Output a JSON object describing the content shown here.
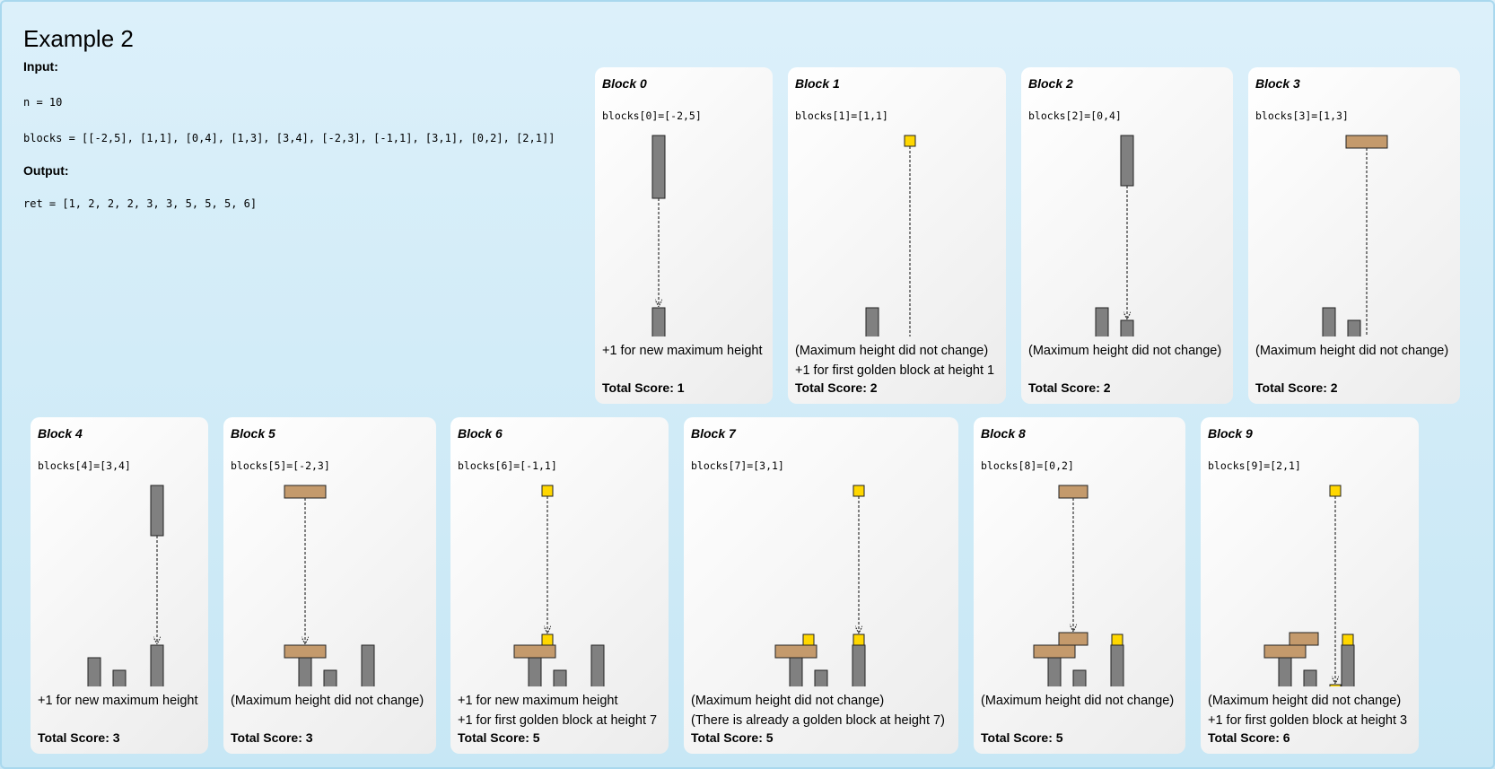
{
  "title": "Example 2",
  "input_label": "Input:",
  "n_line": "n = 10",
  "blocks_line": "blocks = [[-2,5], [1,1], [0,4], [1,3], [3,4], [-2,3], [-1,1], [3,1], [0,2], [2,1]]",
  "output_label": "Output:",
  "ret_line": "ret = [1, 2, 2, 2, 3, 3, 5, 5, 5, 6]",
  "axis_zero": "0",
  "colors": {
    "grey": "#808080",
    "tan": "#c49a6c",
    "gold": "#ffd700",
    "axis": "#333333"
  },
  "cards": [
    {
      "title": "Block 0",
      "expr": "blocks[0]=[-2,5]",
      "lines": [
        "+1 for new maximum height"
      ],
      "score": "Total Score: 1",
      "placed": [],
      "falling": [
        -2,
        5
      ],
      "dropTo": 0
    },
    {
      "title": "Block 1",
      "expr": "blocks[1]=[1,1]",
      "lines": [
        "(Maximum height did not change)",
        "+1 for first golden block at height 1"
      ],
      "score": "Total Score: 2",
      "placed": [
        [
          -2,
          5,
          0
        ]
      ],
      "falling": [
        1,
        1
      ],
      "dropTo": 0
    },
    {
      "title": "Block 2",
      "expr": "blocks[2]=[0,4]",
      "lines": [
        "(Maximum height did not change)"
      ],
      "score": "Total Score: 2",
      "placed": [
        [
          -2,
          5,
          0
        ],
        [
          1,
          1,
          0
        ]
      ],
      "falling": [
        0,
        4
      ],
      "dropTo": 0
    },
    {
      "title": "Block 3",
      "expr": "blocks[3]=[1,3]",
      "lines": [
        "(Maximum height did not change)"
      ],
      "score": "Total Score: 2",
      "placed": [
        [
          -2,
          5,
          0
        ],
        [
          1,
          1,
          0
        ],
        [
          0,
          4,
          0
        ]
      ],
      "falling": [
        1,
        3
      ],
      "dropTo": 1
    },
    {
      "title": "Block 4",
      "expr": "blocks[4]=[3,4]",
      "lines": [
        "+1 for new maximum height"
      ],
      "score": "Total Score: 3",
      "placed": [
        [
          -2,
          5,
          0
        ],
        [
          1,
          1,
          0
        ],
        [
          0,
          4,
          0
        ],
        [
          1,
          3,
          1
        ]
      ],
      "falling": [
        3,
        4
      ],
      "dropTo": 2
    },
    {
      "title": "Block 5",
      "expr": "blocks[5]=[-2,3]",
      "lines": [
        "(Maximum height did not change)"
      ],
      "score": "Total Score: 3",
      "placed": [
        [
          -2,
          5,
          0
        ],
        [
          1,
          1,
          0
        ],
        [
          0,
          4,
          0
        ],
        [
          1,
          3,
          1
        ],
        [
          3,
          4,
          2
        ]
      ],
      "falling": [
        -2,
        3
      ],
      "dropTo": 5
    },
    {
      "title": "Block 6",
      "expr": "blocks[6]=[-1,1]",
      "lines": [
        "+1 for new maximum height",
        "+1 for first golden block at height 7"
      ],
      "score": "Total Score: 5",
      "placed": [
        [
          -2,
          5,
          0
        ],
        [
          1,
          1,
          0
        ],
        [
          0,
          4,
          0
        ],
        [
          1,
          3,
          1
        ],
        [
          3,
          4,
          2
        ],
        [
          -2,
          3,
          5
        ]
      ],
      "falling": [
        -1,
        1
      ],
      "dropTo": 6
    },
    {
      "title": "Block 7",
      "expr": "blocks[7]=[3,1]",
      "lines": [
        "(Maximum height did not change)",
        "(There is already a golden block at height 7)"
      ],
      "score": "Total Score: 5",
      "placed": [
        [
          -2,
          5,
          0
        ],
        [
          1,
          1,
          0
        ],
        [
          0,
          4,
          0
        ],
        [
          1,
          3,
          1
        ],
        [
          3,
          4,
          2
        ],
        [
          -2,
          3,
          5
        ],
        [
          -1,
          1,
          6
        ]
      ],
      "falling": [
        3,
        1
      ],
      "dropTo": 6
    },
    {
      "title": "Block 8",
      "expr": "blocks[8]=[0,2]",
      "lines": [
        "(Maximum height did not change)"
      ],
      "score": "Total Score: 5",
      "placed": [
        [
          -2,
          5,
          0
        ],
        [
          1,
          1,
          0
        ],
        [
          0,
          4,
          0
        ],
        [
          1,
          3,
          1
        ],
        [
          3,
          4,
          2
        ],
        [
          -2,
          3,
          5
        ],
        [
          -1,
          1,
          6
        ],
        [
          3,
          1,
          6
        ]
      ],
      "falling": [
        0,
        2
      ],
      "dropTo": 6
    },
    {
      "title": "Block 9",
      "expr": "blocks[9]=[2,1]",
      "lines": [
        "(Maximum height did not change)",
        "+1 for first golden block at height 3"
      ],
      "score": "Total Score: 6",
      "placed": [
        [
          -2,
          5,
          0
        ],
        [
          1,
          1,
          0
        ],
        [
          0,
          4,
          0
        ],
        [
          1,
          3,
          1
        ],
        [
          3,
          4,
          2
        ],
        [
          -2,
          3,
          5
        ],
        [
          -1,
          1,
          6
        ],
        [
          3,
          1,
          6
        ],
        [
          0,
          2,
          6
        ]
      ],
      "falling": [
        2,
        1
      ],
      "dropTo": 2
    }
  ]
}
